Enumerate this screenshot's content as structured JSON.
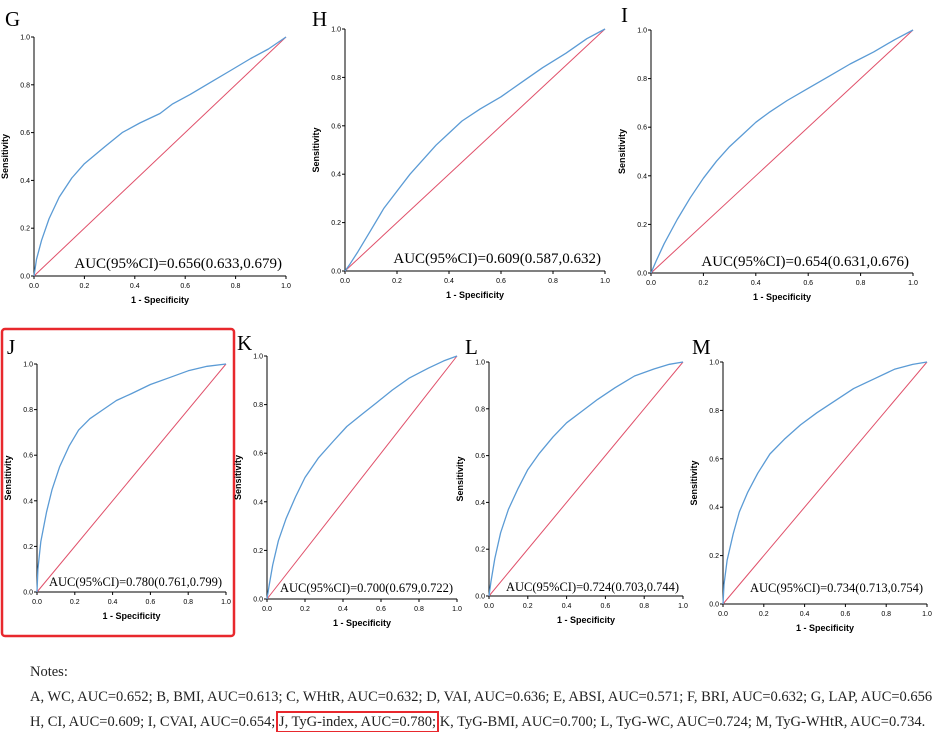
{
  "colors": {
    "roc_line": "#5b9bd5",
    "reference_line": "#e0506a",
    "highlight_box": "#e8282d",
    "axis": "#000000"
  },
  "chart_data": [
    {
      "panel": "G",
      "type": "line",
      "auc_text": "AUC(95%CI)=0.656(0.633,0.679)",
      "auc": 0.656,
      "xlabel": "1 - Specificity",
      "ylabel": "Sensitivity",
      "xlim": [
        0,
        1
      ],
      "ylim": [
        0,
        1
      ],
      "xticks": [
        "0.0",
        "0.2",
        "0.4",
        "0.6",
        "0.8",
        "1.0"
      ],
      "yticks": [
        "0.0",
        "0.2",
        "0.4",
        "0.6",
        "0.8",
        "1.0"
      ],
      "series": [
        {
          "values": [
            [
              0,
              0
            ],
            [
              0.01,
              0.07
            ],
            [
              0.03,
              0.15
            ],
            [
              0.06,
              0.24
            ],
            [
              0.1,
              0.33
            ],
            [
              0.15,
              0.41
            ],
            [
              0.2,
              0.47
            ],
            [
              0.28,
              0.54
            ],
            [
              0.35,
              0.6
            ],
            [
              0.42,
              0.64
            ],
            [
              0.5,
              0.68
            ],
            [
              0.55,
              0.72
            ],
            [
              0.62,
              0.76
            ],
            [
              0.7,
              0.81
            ],
            [
              0.78,
              0.86
            ],
            [
              0.86,
              0.91
            ],
            [
              0.93,
              0.95
            ],
            [
              1,
              1
            ]
          ]
        },
        {
          "values": [
            [
              0,
              0
            ],
            [
              1,
              1
            ]
          ]
        }
      ],
      "highlighted": false
    },
    {
      "panel": "H",
      "type": "line",
      "auc_text": "AUC(95%CI)=0.609(0.587,0.632)",
      "auc": 0.609,
      "xlabel": "1 - Specificity",
      "ylabel": "Sensitivity",
      "xlim": [
        0,
        1
      ],
      "ylim": [
        0,
        1
      ],
      "xticks": [
        "0.0",
        "0.2",
        "0.4",
        "0.6",
        "0.8",
        "1.0"
      ],
      "yticks": [
        "0.0",
        "0.2",
        "0.4",
        "0.6",
        "0.8",
        "1.0"
      ],
      "series": [
        {
          "values": [
            [
              0,
              0
            ],
            [
              0.02,
              0.03
            ],
            [
              0.05,
              0.08
            ],
            [
              0.1,
              0.17
            ],
            [
              0.15,
              0.26
            ],
            [
              0.2,
              0.33
            ],
            [
              0.25,
              0.4
            ],
            [
              0.3,
              0.46
            ],
            [
              0.35,
              0.52
            ],
            [
              0.4,
              0.57
            ],
            [
              0.45,
              0.62
            ],
            [
              0.52,
              0.67
            ],
            [
              0.6,
              0.72
            ],
            [
              0.68,
              0.78
            ],
            [
              0.76,
              0.84
            ],
            [
              0.85,
              0.9
            ],
            [
              0.93,
              0.96
            ],
            [
              1,
              1
            ]
          ]
        },
        {
          "values": [
            [
              0,
              0
            ],
            [
              1,
              1
            ]
          ]
        }
      ],
      "highlighted": false
    },
    {
      "panel": "I",
      "type": "line",
      "auc_text": "AUC(95%CI)=0.654(0.631,0.676)",
      "auc": 0.654,
      "xlabel": "1 - Specificity",
      "ylabel": "Sensitivity",
      "xlim": [
        0,
        1
      ],
      "ylim": [
        0,
        1
      ],
      "xticks": [
        "0.0",
        "0.2",
        "0.4",
        "0.6",
        "0.8",
        "1.0"
      ],
      "yticks": [
        "0.0",
        "0.2",
        "0.4",
        "0.6",
        "0.8",
        "1.0"
      ],
      "series": [
        {
          "values": [
            [
              0,
              0
            ],
            [
              0.02,
              0.05
            ],
            [
              0.05,
              0.12
            ],
            [
              0.1,
              0.22
            ],
            [
              0.15,
              0.31
            ],
            [
              0.2,
              0.39
            ],
            [
              0.25,
              0.46
            ],
            [
              0.3,
              0.52
            ],
            [
              0.35,
              0.57
            ],
            [
              0.4,
              0.62
            ],
            [
              0.45,
              0.66
            ],
            [
              0.52,
              0.71
            ],
            [
              0.6,
              0.76
            ],
            [
              0.68,
              0.81
            ],
            [
              0.76,
              0.86
            ],
            [
              0.85,
              0.91
            ],
            [
              0.93,
              0.96
            ],
            [
              1,
              1
            ]
          ]
        },
        {
          "values": [
            [
              0,
              0
            ],
            [
              1,
              1
            ]
          ]
        }
      ],
      "highlighted": false
    },
    {
      "panel": "J",
      "type": "line",
      "auc_text": "AUC(95%CI)=0.780(0.761,0.799)",
      "auc": 0.78,
      "xlabel": "1 - Specificity",
      "ylabel": "Sensitivity",
      "xlim": [
        0,
        1
      ],
      "ylim": [
        0,
        1
      ],
      "xticks": [
        "0.0",
        "0.2",
        "0.4",
        "0.6",
        "0.8",
        "1.0"
      ],
      "yticks": [
        "0.0",
        "0.2",
        "0.4",
        "0.6",
        "0.8",
        "1.0"
      ],
      "series": [
        {
          "values": [
            [
              0,
              0
            ],
            [
              0.005,
              0.1
            ],
            [
              0.02,
              0.22
            ],
            [
              0.05,
              0.35
            ],
            [
              0.08,
              0.45
            ],
            [
              0.12,
              0.55
            ],
            [
              0.17,
              0.64
            ],
            [
              0.22,
              0.71
            ],
            [
              0.28,
              0.76
            ],
            [
              0.35,
              0.8
            ],
            [
              0.42,
              0.84
            ],
            [
              0.5,
              0.87
            ],
            [
              0.6,
              0.91
            ],
            [
              0.7,
              0.94
            ],
            [
              0.8,
              0.97
            ],
            [
              0.9,
              0.99
            ],
            [
              1,
              1
            ]
          ]
        },
        {
          "values": [
            [
              0,
              0
            ],
            [
              1,
              1
            ]
          ]
        }
      ],
      "highlighted": true
    },
    {
      "panel": "K",
      "type": "line",
      "auc_text": "AUC(95%CI)=0.700(0.679,0.722)",
      "auc": 0.7,
      "xlabel": "1 - Specificity",
      "ylabel": "Sensitivity",
      "xlim": [
        0,
        1
      ],
      "ylim": [
        0,
        1
      ],
      "xticks": [
        "0.0",
        "0.2",
        "0.4",
        "0.6",
        "0.8",
        "1.0"
      ],
      "yticks": [
        "0.0",
        "0.2",
        "0.4",
        "0.6",
        "0.8",
        "1.0"
      ],
      "series": [
        {
          "values": [
            [
              0,
              0
            ],
            [
              0.01,
              0.05
            ],
            [
              0.03,
              0.14
            ],
            [
              0.06,
              0.24
            ],
            [
              0.1,
              0.33
            ],
            [
              0.15,
              0.42
            ],
            [
              0.2,
              0.5
            ],
            [
              0.27,
              0.58
            ],
            [
              0.35,
              0.65
            ],
            [
              0.42,
              0.71
            ],
            [
              0.5,
              0.76
            ],
            [
              0.58,
              0.81
            ],
            [
              0.66,
              0.86
            ],
            [
              0.75,
              0.91
            ],
            [
              0.85,
              0.95
            ],
            [
              0.93,
              0.98
            ],
            [
              1,
              1
            ]
          ]
        },
        {
          "values": [
            [
              0,
              0
            ],
            [
              1,
              1
            ]
          ]
        }
      ],
      "highlighted": false
    },
    {
      "panel": "L",
      "type": "line",
      "auc_text": "AUC(95%CI)=0.724(0.703,0.744)",
      "auc": 0.724,
      "xlabel": "1 - Specificity",
      "ylabel": "Sensitivity",
      "xlim": [
        0,
        1
      ],
      "ylim": [
        0,
        1
      ],
      "xticks": [
        "0.0",
        "0.2",
        "0.4",
        "0.6",
        "0.8",
        "1.0"
      ],
      "yticks": [
        "0.0",
        "0.2",
        "0.4",
        "0.6",
        "0.8",
        "1.0"
      ],
      "series": [
        {
          "values": [
            [
              0,
              0
            ],
            [
              0.01,
              0.06
            ],
            [
              0.03,
              0.16
            ],
            [
              0.06,
              0.27
            ],
            [
              0.1,
              0.37
            ],
            [
              0.15,
              0.46
            ],
            [
              0.2,
              0.54
            ],
            [
              0.26,
              0.61
            ],
            [
              0.33,
              0.68
            ],
            [
              0.4,
              0.74
            ],
            [
              0.48,
              0.79
            ],
            [
              0.56,
              0.84
            ],
            [
              0.65,
              0.89
            ],
            [
              0.75,
              0.94
            ],
            [
              0.85,
              0.97
            ],
            [
              0.93,
              0.99
            ],
            [
              1,
              1
            ]
          ]
        },
        {
          "values": [
            [
              0,
              0
            ],
            [
              1,
              1
            ]
          ]
        }
      ],
      "highlighted": false
    },
    {
      "panel": "M",
      "type": "line",
      "auc_text": "AUC(95%CI)=0.734(0.713,0.754)",
      "auc": 0.734,
      "xlabel": "1 - Specificity",
      "ylabel": "Sensitivity",
      "xlim": [
        0,
        1
      ],
      "ylim": [
        0,
        1
      ],
      "xticks": [
        "0.0",
        "0.2",
        "0.4",
        "0.6",
        "0.8",
        "1.0"
      ],
      "yticks": [
        "0.0",
        "0.2",
        "0.4",
        "0.6",
        "0.8",
        "1.0"
      ],
      "series": [
        {
          "values": [
            [
              0,
              0
            ],
            [
              0.005,
              0.08
            ],
            [
              0.02,
              0.18
            ],
            [
              0.05,
              0.29
            ],
            [
              0.08,
              0.38
            ],
            [
              0.12,
              0.46
            ],
            [
              0.17,
              0.54
            ],
            [
              0.23,
              0.62
            ],
            [
              0.3,
              0.68
            ],
            [
              0.38,
              0.74
            ],
            [
              0.46,
              0.79
            ],
            [
              0.55,
              0.84
            ],
            [
              0.64,
              0.89
            ],
            [
              0.74,
              0.93
            ],
            [
              0.84,
              0.97
            ],
            [
              0.93,
              0.99
            ],
            [
              1,
              1
            ]
          ]
        },
        {
          "values": [
            [
              0,
              0
            ],
            [
              1,
              1
            ]
          ]
        }
      ],
      "highlighted": false
    }
  ],
  "notes": {
    "heading": "Notes:",
    "line1": "A, WC, AUC=0.652; B, BMI, AUC=0.613; C, WHtR, AUC=0.632; D, VAI, AUC=0.636; E, ABSI, AUC=0.571; F, BRI, AUC=0.632; G, LAP, AUC=0.656;",
    "line2_pre": "H, CI, AUC=0.609; I, CVAI, AUC=0.654; ",
    "line2_highlight": "J, TyG-index, AUC=0.780;",
    "line2_post": " K, TyG-BMI, AUC=0.700; L, TyG-WC, AUC=0.724; M, TyG-WHtR, AUC=0.734."
  }
}
